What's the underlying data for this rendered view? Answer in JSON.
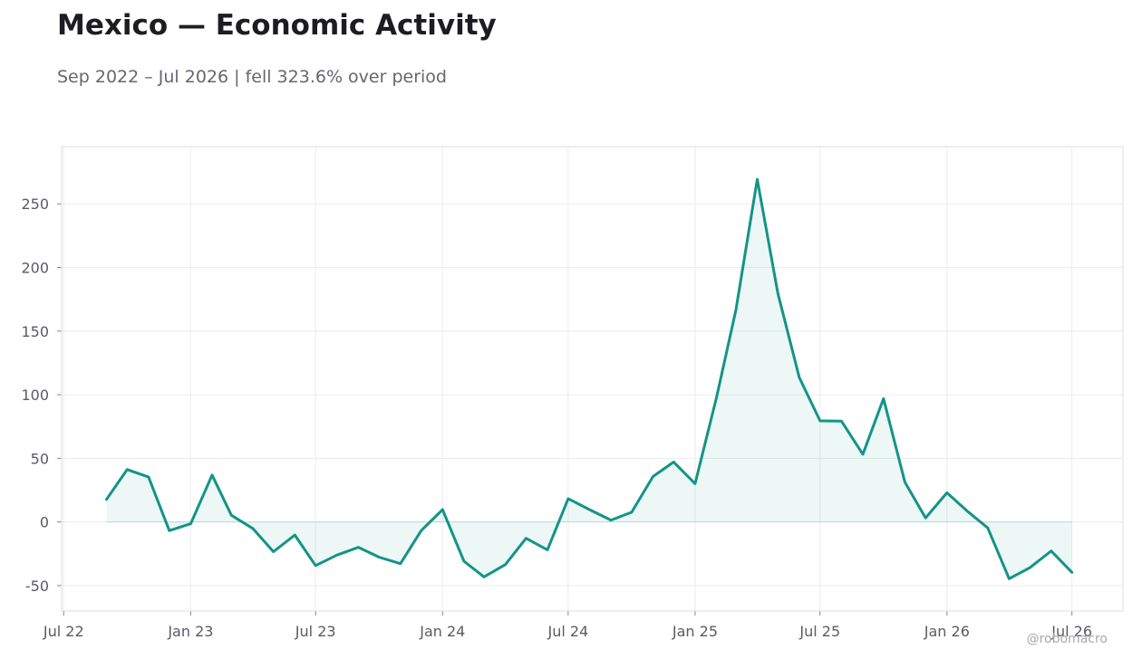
{
  "title": "Mexico — Economic Activity",
  "subtitle": "Sep 2022 – Jul 2026 | fell 323.6% over period",
  "watermark": "@robomacro",
  "colors": {
    "line": "#139488",
    "fill": "#139488",
    "grid": "#ececec",
    "frame": "#dddddd"
  },
  "chart_data": {
    "type": "area",
    "title": "Mexico — Economic Activity",
    "xlabel": "",
    "ylabel": "",
    "x": [
      "2022-09",
      "2022-10",
      "2022-11",
      "2022-12",
      "2023-01",
      "2023-02",
      "2023-03",
      "2023-04",
      "2023-05",
      "2023-06",
      "2023-07",
      "2023-08",
      "2023-09",
      "2023-10",
      "2023-11",
      "2023-12",
      "2024-01",
      "2024-02",
      "2024-03",
      "2024-04",
      "2024-05",
      "2024-06",
      "2024-07",
      "2024-08",
      "2024-09",
      "2024-10",
      "2024-11",
      "2024-12",
      "2025-01",
      "2025-02",
      "2025-03",
      "2025-04",
      "2025-05",
      "2025-06",
      "2025-07",
      "2025-08",
      "2025-09",
      "2025-10",
      "2025-11",
      "2025-12",
      "2026-01",
      "2026-02",
      "2026-03",
      "2026-04",
      "2026-05",
      "2026-06",
      "2026-07"
    ],
    "values": [
      17.7,
      41.2,
      35.4,
      -6.8,
      -1.4,
      36.9,
      5.3,
      -5.1,
      -23.4,
      -10.3,
      -34.3,
      -26.0,
      -19.9,
      -27.7,
      -32.8,
      -6.8,
      9.7,
      -30.9,
      -43.2,
      -33.5,
      -12.9,
      -21.9,
      18.3,
      9.7,
      1.4,
      7.6,
      35.7,
      47.1,
      30.1,
      97.7,
      166.4,
      269.3,
      179.5,
      113.5,
      79.5,
      79.3,
      53.2,
      96.9,
      31.3,
      3.2,
      22.9,
      7.8,
      -4.7,
      -44.6,
      -36.0,
      -22.8,
      -39.6
    ],
    "xticks": [
      "Jul 22",
      "Jan 23",
      "Jul 23",
      "Jan 24",
      "Jul 24",
      "Jan 25",
      "Jul 25",
      "Jan 26",
      "Jul 26"
    ],
    "yticks": [
      -50,
      0,
      50,
      100,
      150,
      200,
      250
    ],
    "xlim": [
      "2022-06-28",
      "2026-09-13"
    ],
    "ylim": [
      -70,
      295
    ],
    "grid": true,
    "legend": "none"
  }
}
